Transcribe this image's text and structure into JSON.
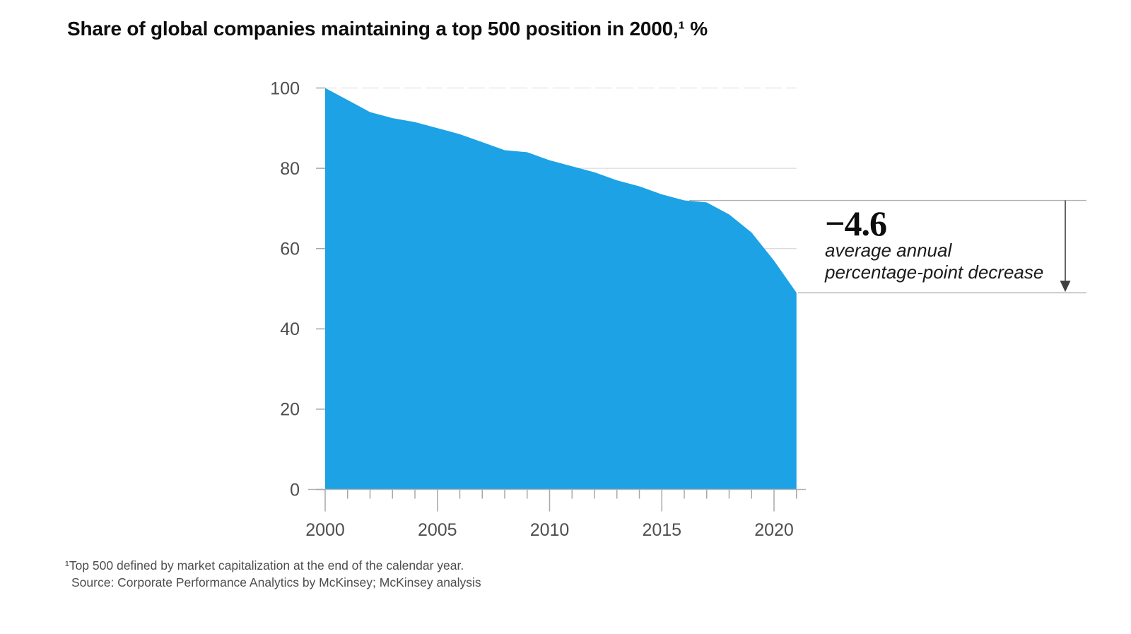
{
  "title": "Share of global companies maintaining a top 500 position in 2000,¹ %",
  "footnotes": {
    "definition": "¹Top 500 defined by market capitalization at the end of the calendar year.",
    "source": "Source: Corporate Performance Analytics by McKinsey; McKinsey analysis"
  },
  "annotation": {
    "value_label": "−4.6",
    "description_lines": [
      "average annual",
      "percentage-point decrease"
    ]
  },
  "colors": {
    "area_fill": "#1CA2E5",
    "gridline": "#dcdcdc",
    "top_gridline": "#e2e2e2",
    "axis": "#b3b3b3",
    "tick": "#a8a8a8",
    "tick_label": "#4f4f4f",
    "annotation_line": "#b0b0b0",
    "arrow": "#3f3f3f"
  },
  "chart_data": {
    "type": "area",
    "title": "Share of global companies maintaining a top 500 position in 2000, %",
    "xlabel": "",
    "ylabel": "%",
    "grid": "horizontal",
    "legend": "none",
    "ylim": [
      0,
      100
    ],
    "y_ticks": [
      0,
      20,
      40,
      60,
      80,
      100
    ],
    "x_major_ticks": [
      2000,
      2005,
      2010,
      2015,
      2020
    ],
    "x": [
      2000,
      2001,
      2002,
      2003,
      2004,
      2005,
      2006,
      2007,
      2008,
      2009,
      2010,
      2011,
      2012,
      2013,
      2014,
      2015,
      2016,
      2017,
      2018,
      2019,
      2020,
      2021
    ],
    "values": [
      100,
      97,
      94,
      92.5,
      91.5,
      90,
      88.5,
      86.5,
      84.5,
      84,
      82,
      80.5,
      79,
      77,
      75.5,
      73.5,
      72,
      71.5,
      68.5,
      64,
      57,
      49
    ],
    "annotation": {
      "value_label": "−4.6",
      "description_lines": [
        "average annual",
        "percentage-point decrease"
      ],
      "bracket_top_value": 72,
      "bracket_bottom_value": 49
    }
  }
}
